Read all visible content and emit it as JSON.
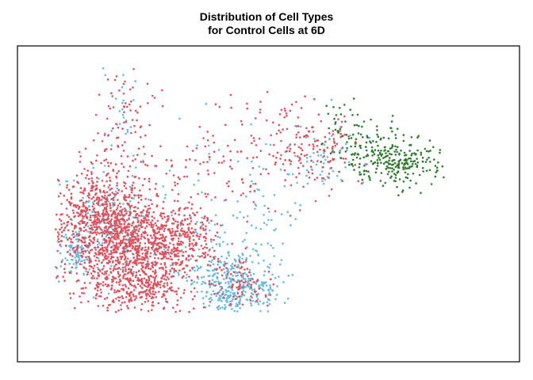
{
  "chart_data": {
    "type": "scatter",
    "title_line1": "Distribution of Cell Types",
    "title_line2": "for Control Cells at 6D",
    "xlabel": "",
    "ylabel": "",
    "axes_visible": false,
    "grid": false,
    "legend": "none",
    "series": [
      {
        "color": "#d9535f",
        "seed": 17
      },
      {
        "color": "#6bb8e0",
        "seed": 29
      },
      {
        "color": "#2f7a2f",
        "seed": 43
      }
    ]
  }
}
